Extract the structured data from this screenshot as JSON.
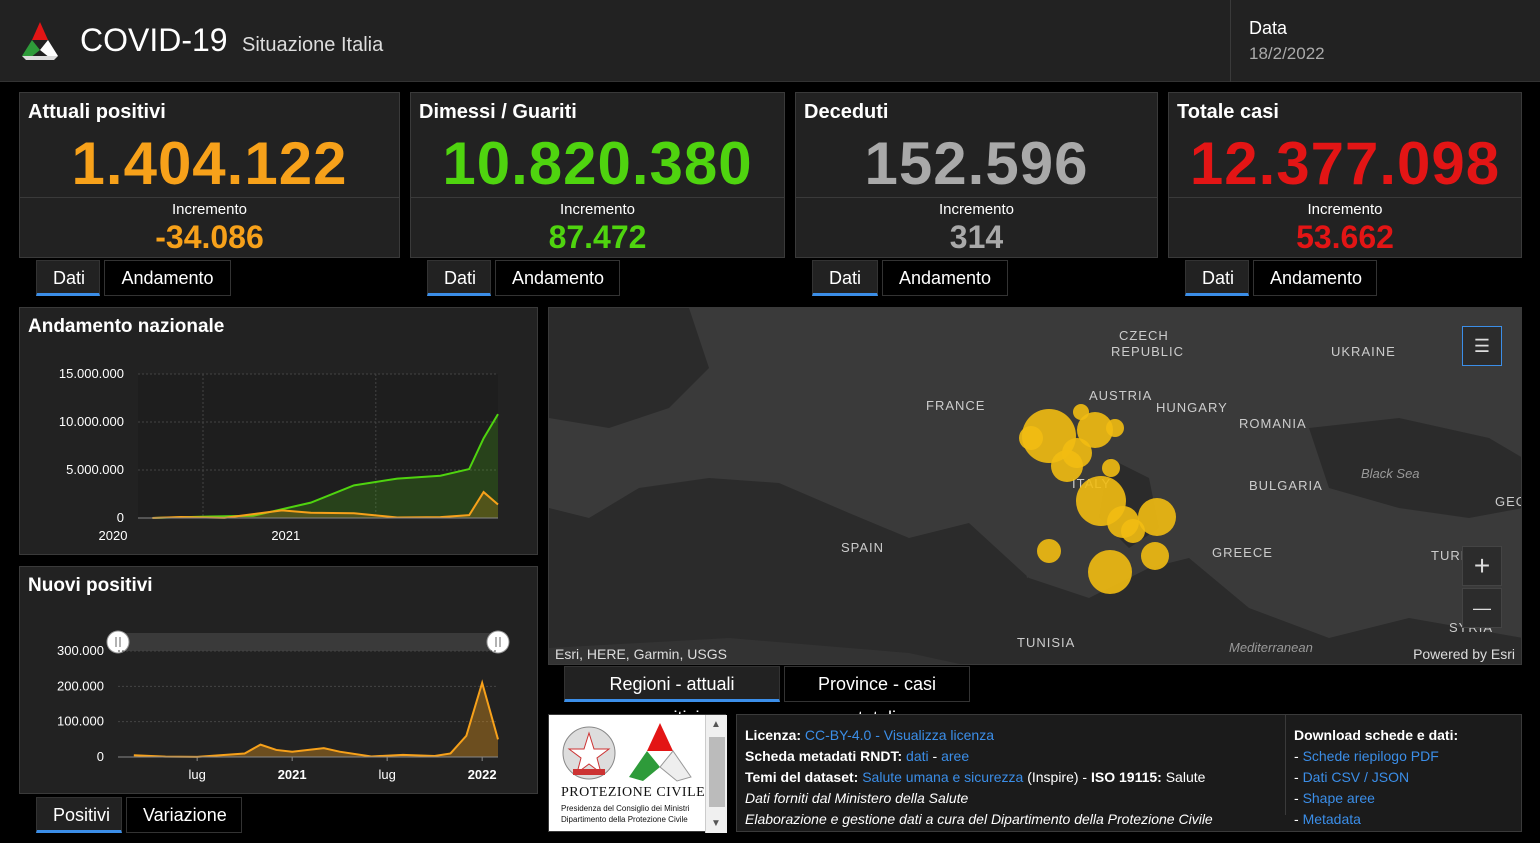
{
  "header": {
    "title": "COVID-19",
    "subtitle": "Situazione Italia",
    "date_label": "Data",
    "date_value": "18/2/2022"
  },
  "kpis": [
    {
      "title": "Attuali positivi",
      "value": "1.404.122",
      "inc_label": "Incremento",
      "inc_value": "-34.086",
      "color": "#f7a11a",
      "tabs": [
        "Dati",
        "Andamento"
      ]
    },
    {
      "title": "Dimessi / Guariti",
      "value": "10.820.380",
      "inc_label": "Incremento",
      "inc_value": "87.472",
      "color": "#4fd40f",
      "tabs": [
        "Dati",
        "Andamento"
      ]
    },
    {
      "title": "Deceduti",
      "value": "152.596",
      "inc_label": "Incremento",
      "inc_value": "314",
      "color": "#a9a9a9",
      "tabs": [
        "Dati",
        "Andamento"
      ]
    },
    {
      "title": "Totale casi",
      "value": "12.377.098",
      "inc_label": "Incremento",
      "inc_value": "53.662",
      "color": "#e31515",
      "tabs": [
        "Dati",
        "Andamento"
      ]
    }
  ],
  "andamento": {
    "title": "Andamento nazionale"
  },
  "nuovi": {
    "title": "Nuovi positivi",
    "tabs": [
      "Positivi",
      "Variazione"
    ]
  },
  "chart_data": [
    {
      "type": "area",
      "title": "Andamento nazionale",
      "ylim": [
        0,
        15000000
      ],
      "yticks": [
        "15.000.000",
        "10.000.000",
        "5.000.000",
        "0"
      ],
      "xticks": [
        "2020",
        "2021"
      ],
      "grid": true,
      "series": [
        {
          "color": "#4fd40f",
          "x": [
            "2020-02",
            "2020-06",
            "2020-09",
            "2021-01",
            "2021-04",
            "2021-07",
            "2021-10",
            "2021-12",
            "2022-01",
            "2022-02"
          ],
          "values": [
            0,
            150000,
            230000,
            1600000,
            3400000,
            4100000,
            4400000,
            5100000,
            8300000,
            10820380
          ]
        },
        {
          "color": "#f7a11a",
          "x": [
            "2020-02",
            "2020-04",
            "2020-07",
            "2020-11",
            "2021-01",
            "2021-04",
            "2021-07",
            "2021-10",
            "2021-12",
            "2022-01",
            "2022-02"
          ],
          "values": [
            0,
            100000,
            15000,
            790000,
            550000,
            500000,
            50000,
            90000,
            300000,
            2700000,
            1404122
          ]
        }
      ]
    },
    {
      "type": "bar",
      "title": "Nuovi positivi",
      "ylim": [
        0,
        300000
      ],
      "yticks": [
        "300.000",
        "200.000",
        "100.000",
        "0"
      ],
      "xticks": [
        "lug",
        "2021",
        "lug",
        "2022"
      ],
      "grid": true,
      "series": [
        {
          "color": "#f7a11a",
          "x": [
            "2020-03",
            "2020-05",
            "2020-07",
            "2020-10",
            "2020-11",
            "2020-12",
            "2021-01",
            "2021-03",
            "2021-04",
            "2021-06",
            "2021-08",
            "2021-10",
            "2021-11",
            "2021-12",
            "2022-01",
            "2022-02"
          ],
          "values": [
            5000,
            1000,
            300,
            10000,
            35000,
            20000,
            15000,
            25000,
            15000,
            1500,
            6000,
            3000,
            10000,
            60000,
            210000,
            50000
          ]
        }
      ]
    }
  ],
  "map": {
    "labels": [
      {
        "text": "CZECH",
        "sea": false
      },
      {
        "text": "REPUBLIC",
        "sea": false
      },
      {
        "text": "UKRAINE",
        "sea": false
      },
      {
        "text": "FRANCE",
        "sea": false
      },
      {
        "text": "AUSTRIA",
        "sea": false
      },
      {
        "text": "HUNGARY",
        "sea": false
      },
      {
        "text": "ROMANIA",
        "sea": false
      },
      {
        "text": "Black Sea",
        "sea": true
      },
      {
        "text": "BULGARIA",
        "sea": false
      },
      {
        "text": "ITALY",
        "sea": false
      },
      {
        "text": "SPAIN",
        "sea": false
      },
      {
        "text": "GREECE",
        "sea": false
      },
      {
        "text": "TURKEY",
        "sea": false
      },
      {
        "text": "TUNISIA",
        "sea": false
      },
      {
        "text": "SYRIA",
        "sea": false
      },
      {
        "text": "GEO",
        "sea": false
      },
      {
        "text": "Mediterranean",
        "sea": true
      }
    ],
    "attribution_left": "Esri, HERE, Garmin, USGS",
    "attribution_right": "Powered by Esri",
    "zoom_in": "+",
    "zoom_out": "—",
    "bubble_color": "#f2bd12",
    "tabs": [
      "Regioni - attuali positivi",
      "Province - casi totali"
    ]
  },
  "logo_panel": {
    "title": "PROTEZIONE CIVILE",
    "sub1": "Presidenza del Consiglio dei Ministri",
    "sub2": "Dipartimento della Protezione Civile"
  },
  "info": {
    "licenza_label": "Licenza:",
    "licenza_link1": "CC-BY-4.0",
    "licenza_sep": " - ",
    "licenza_link2": "Visualizza licenza",
    "scheda_label": "Scheda metadati RNDT:",
    "scheda_link1": "dati",
    "scheda_sep": " - ",
    "scheda_link2": "aree",
    "temi_label": "Temi del dataset:",
    "temi_link": "Salute umana e sicurezza",
    "temi_mid": " (Inspire) - ",
    "iso_label": "ISO 19115:",
    "iso_value": "Salute",
    "line4": "Dati forniti dal Ministero della Salute",
    "line5": "Elaborazione e gestione dati a cura del Dipartimento della Protezione Civile",
    "download_title": "Download schede e dati:",
    "downloads": [
      "Schede riepilogo PDF",
      "Dati CSV / JSON",
      "Shape aree",
      "Metadata"
    ]
  }
}
